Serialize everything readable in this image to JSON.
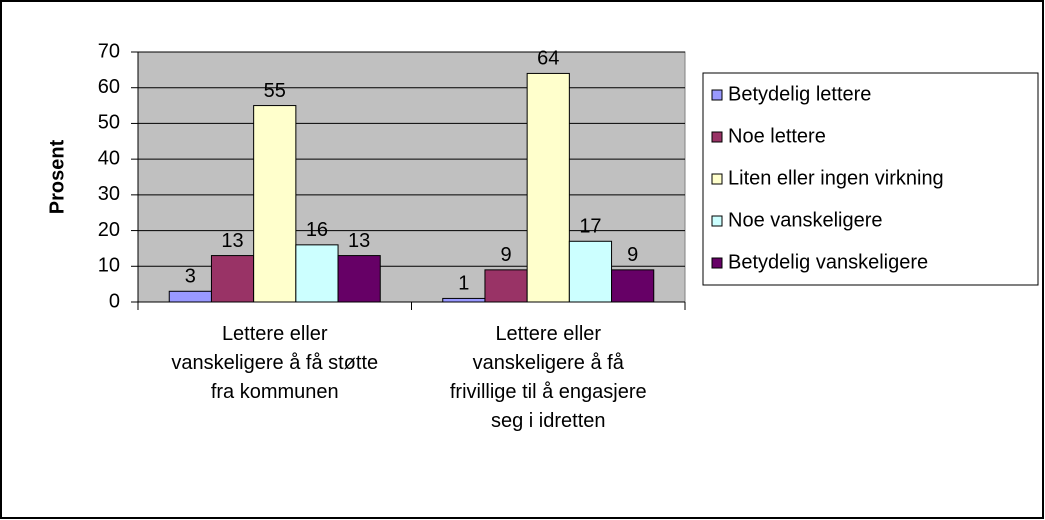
{
  "chart_data": {
    "type": "bar",
    "y_label": "Prosent",
    "categories": [
      "Lettere eller vanskeligere å få støtte fra kommunen",
      "Lettere eller vanskeligere å få frivillige til å engasjere seg i idretten"
    ],
    "series": [
      {
        "name": "Betydelig lettere",
        "color": "#9999ff",
        "values": [
          3,
          1
        ]
      },
      {
        "name": "Noe lettere",
        "color": "#993366",
        "values": [
          13,
          9
        ]
      },
      {
        "name": "Liten eller ingen virkning",
        "color": "#ffffcc",
        "values": [
          55,
          64
        ]
      },
      {
        "name": "Noe vanskeligere",
        "color": "#ccffff",
        "values": [
          16,
          17
        ]
      },
      {
        "name": "Betydelig vanskeligere",
        "color": "#660066",
        "values": [
          13,
          9
        ]
      }
    ],
    "ylim": [
      0,
      70
    ],
    "yticks": [
      0,
      10,
      20,
      30,
      40,
      50,
      60,
      70
    ],
    "grid": true,
    "legend": "right"
  }
}
